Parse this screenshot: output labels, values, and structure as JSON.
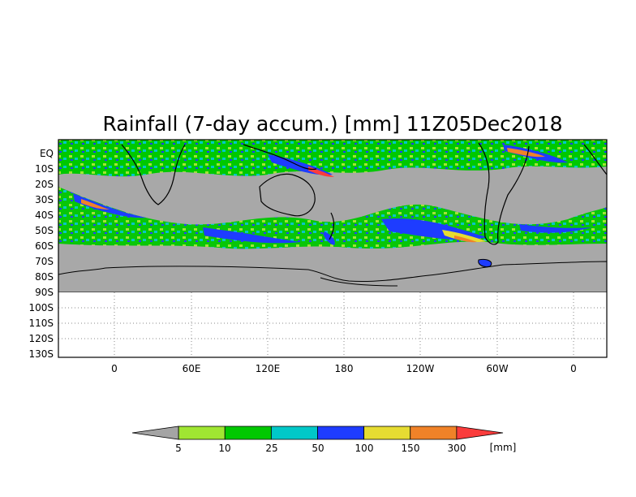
{
  "title": "Rainfall (7-day accum.) [mm] 11Z05Dec2018",
  "map": {
    "lat_labels": [
      "EQ",
      "10S",
      "20S",
      "30S",
      "40S",
      "50S",
      "60S",
      "70S",
      "80S",
      "90S",
      "100S",
      "110S",
      "120S",
      "130S"
    ],
    "lon_labels": [
      "0",
      "60E",
      "120E",
      "180",
      "120W",
      "60W",
      "0"
    ],
    "no_data_color": "#a8a8a8",
    "grid": "dotted"
  },
  "colorbar": {
    "unit": "[mm]",
    "levels": [
      "5",
      "10",
      "25",
      "50",
      "100",
      "150",
      "300"
    ],
    "colors": [
      "#a4a4a4",
      "#a0e632",
      "#00c800",
      "#00c8c8",
      "#1e3cff",
      "#e6dc32",
      "#f08228",
      "#fa3c3c"
    ]
  }
}
